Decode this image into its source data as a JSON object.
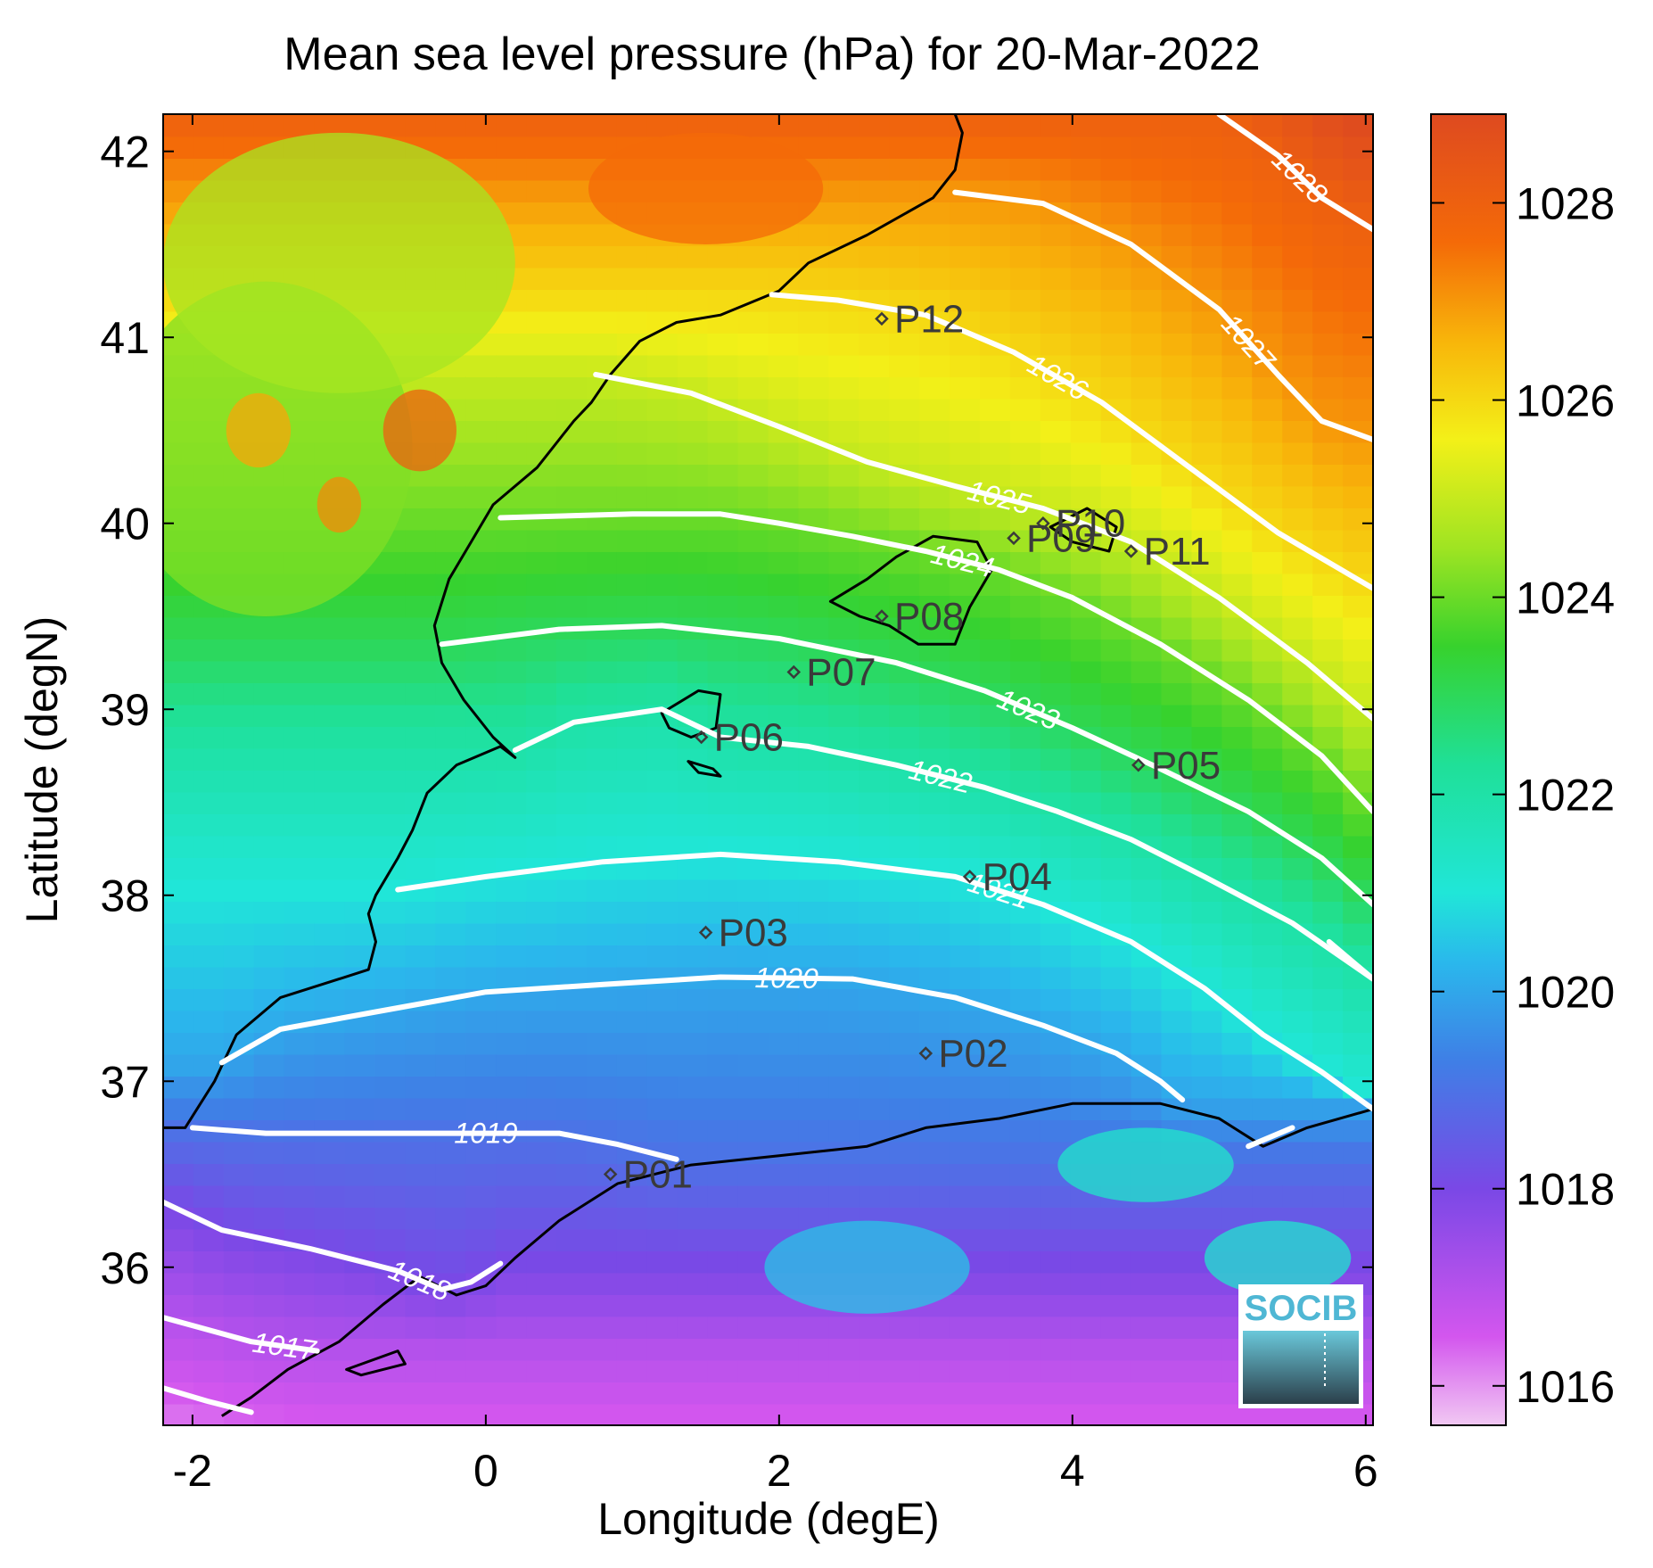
{
  "figure": {
    "title": "Mean sea level pressure (hPa) for 20-Mar-2022",
    "xlabel": "Longitude (degE)",
    "ylabel": "Latitude (degN)",
    "logo_text": "SOCIB"
  },
  "map": {
    "lon_range": [
      -2.2,
      6.05
    ],
    "lat_range": [
      35.15,
      42.2
    ],
    "x_ticks": [
      -2,
      0,
      2,
      4,
      6
    ],
    "x_tick_labels": [
      "-2",
      "0",
      "2",
      "4",
      "6"
    ],
    "y_ticks": [
      36,
      37,
      38,
      39,
      40,
      41,
      42
    ],
    "y_tick_labels": [
      "36",
      "37",
      "38",
      "39",
      "40",
      "41",
      "42"
    ],
    "colors": {
      "land_low": "#3fdd55",
      "coastline": "#000000",
      "contour": "#ffffff",
      "station_marker": "#3a3a3a"
    }
  },
  "colorbar": {
    "range": [
      1015.6,
      1028.9
    ],
    "ticks": [
      1016,
      1018,
      1020,
      1022,
      1024,
      1026,
      1028
    ],
    "tick_labels": [
      "1016",
      "1018",
      "1020",
      "1022",
      "1024",
      "1026",
      "1028"
    ],
    "stops": [
      {
        "value": 1015.6,
        "color": "#f1c8f3"
      },
      {
        "value": 1016.5,
        "color": "#d356ee"
      },
      {
        "value": 1018.0,
        "color": "#7a48e6"
      },
      {
        "value": 1019.3,
        "color": "#3f7fe6"
      },
      {
        "value": 1020.3,
        "color": "#2ab8ec"
      },
      {
        "value": 1021.0,
        "color": "#20e6d8"
      },
      {
        "value": 1022.3,
        "color": "#1fe098"
      },
      {
        "value": 1023.5,
        "color": "#37d22d"
      },
      {
        "value": 1024.5,
        "color": "#9fe422"
      },
      {
        "value": 1025.6,
        "color": "#f3f018"
      },
      {
        "value": 1026.6,
        "color": "#f8b50a"
      },
      {
        "value": 1027.6,
        "color": "#f46a08"
      },
      {
        "value": 1028.9,
        "color": "#de4a20"
      }
    ]
  },
  "stations": [
    {
      "id": "P01",
      "lon": 0.85,
      "lat": 36.5
    },
    {
      "id": "P02",
      "lon": 3.0,
      "lat": 37.15
    },
    {
      "id": "P03",
      "lon": 1.5,
      "lat": 37.8
    },
    {
      "id": "P04",
      "lon": 3.3,
      "lat": 38.1
    },
    {
      "id": "P05",
      "lon": 4.45,
      "lat": 38.7
    },
    {
      "id": "P06",
      "lon": 1.47,
      "lat": 38.85
    },
    {
      "id": "P07",
      "lon": 2.1,
      "lat": 39.2
    },
    {
      "id": "P08",
      "lon": 2.7,
      "lat": 39.5
    },
    {
      "id": "P09",
      "lon": 3.6,
      "lat": 39.92
    },
    {
      "id": "P10",
      "lon": 3.8,
      "lat": 40.0
    },
    {
      "id": "P11",
      "lon": 4.4,
      "lat": 39.85
    },
    {
      "id": "P12",
      "lon": 2.7,
      "lat": 41.1
    }
  ],
  "contours": [
    {
      "level": 1017,
      "label": "1017",
      "points": [
        [
          -2.2,
          35.73
        ],
        [
          -1.6,
          35.6
        ],
        [
          -1.15,
          35.55
        ]
      ]
    },
    {
      "level": 1017,
      "label": "",
      "points": [
        [
          -2.2,
          35.35
        ],
        [
          -1.9,
          35.28
        ],
        [
          -1.6,
          35.22
        ]
      ]
    },
    {
      "level": 1018,
      "label": "1018",
      "points": [
        [
          -2.2,
          36.35
        ],
        [
          -1.8,
          36.2
        ],
        [
          -1.2,
          36.1
        ],
        [
          -0.6,
          35.98
        ],
        [
          -0.3,
          35.88
        ],
        [
          -0.1,
          35.92
        ],
        [
          0.1,
          36.02
        ]
      ]
    },
    {
      "level": 1019,
      "label": "1019",
      "points": [
        [
          -2.0,
          36.75
        ],
        [
          -1.5,
          36.72
        ],
        [
          -0.5,
          36.72
        ],
        [
          0.5,
          36.72
        ],
        [
          0.9,
          36.66
        ],
        [
          1.3,
          36.58
        ]
      ]
    },
    {
      "level": 1020,
      "label": "1020",
      "points": [
        [
          -1.8,
          37.1
        ],
        [
          -1.4,
          37.28
        ],
        [
          -0.7,
          37.38
        ],
        [
          0,
          37.48
        ],
        [
          0.8,
          37.52
        ],
        [
          1.6,
          37.56
        ],
        [
          2.5,
          37.55
        ],
        [
          3.2,
          37.45
        ],
        [
          3.8,
          37.3
        ],
        [
          4.3,
          37.15
        ],
        [
          4.6,
          37.0
        ],
        [
          4.75,
          36.9
        ]
      ]
    },
    {
      "level": 1020,
      "label": "",
      "points": [
        [
          5.2,
          36.65
        ],
        [
          5.5,
          36.75
        ]
      ]
    },
    {
      "level": 1021,
      "label": "1021",
      "points": [
        [
          -0.6,
          38.03
        ],
        [
          0,
          38.1
        ],
        [
          0.8,
          38.18
        ],
        [
          1.6,
          38.22
        ],
        [
          2.4,
          38.18
        ],
        [
          3.2,
          38.1
        ],
        [
          3.8,
          37.95
        ],
        [
          4.4,
          37.75
        ],
        [
          4.9,
          37.5
        ],
        [
          5.3,
          37.25
        ],
        [
          5.7,
          37.05
        ],
        [
          6.05,
          36.85
        ]
      ]
    },
    {
      "level": 1021,
      "label": "",
      "points": [
        [
          5.75,
          37.75
        ],
        [
          6.05,
          37.55
        ]
      ]
    },
    {
      "level": 1022,
      "label": "1022",
      "points": [
        [
          0.2,
          38.78
        ],
        [
          0.6,
          38.93
        ],
        [
          1.2,
          39.0
        ],
        [
          1.6,
          38.85
        ],
        [
          2.2,
          38.8
        ],
        [
          2.8,
          38.7
        ],
        [
          3.4,
          38.58
        ],
        [
          3.9,
          38.45
        ],
        [
          4.4,
          38.3
        ],
        [
          4.9,
          38.1
        ],
        [
          5.5,
          37.85
        ],
        [
          6.05,
          37.55
        ]
      ]
    },
    {
      "level": 1023,
      "label": "1023",
      "points": [
        [
          -0.3,
          39.35
        ],
        [
          0.5,
          39.43
        ],
        [
          1.2,
          39.45
        ],
        [
          2.0,
          39.38
        ],
        [
          2.8,
          39.25
        ],
        [
          3.4,
          39.1
        ],
        [
          4.0,
          38.9
        ],
        [
          4.6,
          38.68
        ],
        [
          5.2,
          38.45
        ],
        [
          5.7,
          38.2
        ],
        [
          6.05,
          37.95
        ]
      ]
    },
    {
      "level": 1024,
      "label": "1024",
      "points": [
        [
          0.1,
          40.03
        ],
        [
          1.0,
          40.05
        ],
        [
          1.6,
          40.05
        ],
        [
          2.0,
          40.0
        ],
        [
          2.5,
          39.93
        ],
        [
          3.0,
          39.85
        ],
        [
          3.5,
          39.75
        ],
        [
          4.0,
          39.6
        ],
        [
          4.6,
          39.35
        ],
        [
          5.2,
          39.05
        ],
        [
          5.7,
          38.75
        ],
        [
          6.05,
          38.45
        ]
      ]
    },
    {
      "level": 1025,
      "label": "1025",
      "points": [
        [
          0.75,
          40.8
        ],
        [
          1.4,
          40.7
        ],
        [
          2.0,
          40.52
        ],
        [
          2.6,
          40.33
        ],
        [
          3.2,
          40.2
        ],
        [
          3.8,
          40.08
        ],
        [
          4.4,
          39.9
        ],
        [
          5.0,
          39.6
        ],
        [
          5.6,
          39.25
        ],
        [
          6.05,
          38.95
        ]
      ]
    },
    {
      "level": 1026,
      "label": "1026",
      "points": [
        [
          1.95,
          41.23
        ],
        [
          2.4,
          41.2
        ],
        [
          3.0,
          41.12
        ],
        [
          3.6,
          40.92
        ],
        [
          4.2,
          40.65
        ],
        [
          4.8,
          40.3
        ],
        [
          5.4,
          39.95
        ],
        [
          6.05,
          39.65
        ]
      ]
    },
    {
      "level": 1027,
      "label": "1027",
      "points": [
        [
          3.2,
          41.78
        ],
        [
          3.8,
          41.72
        ],
        [
          4.4,
          41.5
        ],
        [
          5.0,
          41.15
        ],
        [
          5.4,
          40.8
        ],
        [
          5.7,
          40.55
        ],
        [
          6.05,
          40.45
        ]
      ]
    },
    {
      "level": 1028,
      "label": "1028",
      "points": [
        [
          5.0,
          42.2
        ],
        [
          5.4,
          41.98
        ],
        [
          5.7,
          41.75
        ],
        [
          6.05,
          41.58
        ]
      ]
    }
  ],
  "coastlines": [
    {
      "name": "iberian-coast",
      "points": [
        [
          -2.2,
          36.75
        ],
        [
          -2.05,
          36.75
        ],
        [
          -1.85,
          37.0
        ],
        [
          -1.7,
          37.25
        ],
        [
          -1.4,
          37.45
        ],
        [
          -1.0,
          37.55
        ],
        [
          -0.8,
          37.6
        ],
        [
          -0.75,
          37.75
        ],
        [
          -0.8,
          37.9
        ],
        [
          -0.75,
          38.0
        ],
        [
          -0.6,
          38.2
        ],
        [
          -0.5,
          38.35
        ],
        [
          -0.4,
          38.55
        ],
        [
          -0.2,
          38.7
        ],
        [
          0.1,
          38.8
        ],
        [
          0.2,
          38.74
        ],
        [
          0.05,
          38.85
        ],
        [
          -0.15,
          39.05
        ],
        [
          -0.3,
          39.25
        ],
        [
          -0.35,
          39.45
        ],
        [
          -0.25,
          39.7
        ],
        [
          -0.1,
          39.9
        ],
        [
          0.05,
          40.1
        ],
        [
          0.35,
          40.3
        ],
        [
          0.6,
          40.55
        ],
        [
          0.72,
          40.65
        ],
        [
          0.85,
          40.8
        ],
        [
          1.05,
          40.98
        ],
        [
          1.3,
          41.08
        ],
        [
          1.6,
          41.12
        ],
        [
          2.0,
          41.25
        ],
        [
          2.2,
          41.4
        ],
        [
          2.6,
          41.55
        ],
        [
          3.05,
          41.75
        ],
        [
          3.2,
          41.9
        ],
        [
          3.25,
          42.1
        ],
        [
          3.2,
          42.2
        ]
      ]
    },
    {
      "name": "african-coast",
      "points": [
        [
          -1.8,
          35.2
        ],
        [
          -1.6,
          35.3
        ],
        [
          -1.35,
          35.45
        ],
        [
          -1.0,
          35.6
        ],
        [
          -0.7,
          35.8
        ],
        [
          -0.45,
          35.95
        ],
        [
          -0.2,
          35.85
        ],
        [
          0.0,
          35.9
        ],
        [
          0.2,
          36.05
        ],
        [
          0.5,
          36.25
        ],
        [
          0.9,
          36.45
        ],
        [
          1.4,
          36.55
        ],
        [
          2.0,
          36.6
        ],
        [
          2.6,
          36.65
        ],
        [
          3.0,
          36.75
        ],
        [
          3.5,
          36.8
        ],
        [
          4.0,
          36.88
        ],
        [
          4.6,
          36.88
        ],
        [
          5.0,
          36.8
        ],
        [
          5.3,
          36.65
        ],
        [
          5.6,
          36.75
        ],
        [
          6.05,
          36.85
        ]
      ]
    },
    {
      "name": "mallorca",
      "closed": true,
      "points": [
        [
          2.35,
          39.58
        ],
        [
          2.6,
          39.7
        ],
        [
          2.8,
          39.82
        ],
        [
          3.05,
          39.93
        ],
        [
          3.35,
          39.9
        ],
        [
          3.45,
          39.75
        ],
        [
          3.3,
          39.55
        ],
        [
          3.2,
          39.35
        ],
        [
          2.95,
          39.35
        ],
        [
          2.75,
          39.45
        ],
        [
          2.55,
          39.5
        ]
      ]
    },
    {
      "name": "menorca",
      "closed": true,
      "points": [
        [
          3.85,
          39.98
        ],
        [
          4.1,
          40.08
        ],
        [
          4.3,
          39.98
        ],
        [
          4.25,
          39.85
        ],
        [
          4.0,
          39.9
        ]
      ]
    },
    {
      "name": "ibiza",
      "closed": true,
      "points": [
        [
          1.2,
          38.98
        ],
        [
          1.45,
          39.1
        ],
        [
          1.6,
          39.08
        ],
        [
          1.57,
          38.9
        ],
        [
          1.4,
          38.85
        ],
        [
          1.25,
          38.9
        ]
      ]
    },
    {
      "name": "formentera",
      "closed": true,
      "points": [
        [
          1.38,
          38.72
        ],
        [
          1.55,
          38.68
        ],
        [
          1.6,
          38.64
        ],
        [
          1.45,
          38.66
        ]
      ]
    },
    {
      "name": "alboran",
      "closed": true,
      "points": [
        [
          -0.95,
          35.45
        ],
        [
          -0.6,
          35.55
        ],
        [
          -0.55,
          35.48
        ],
        [
          -0.85,
          35.42
        ]
      ]
    }
  ],
  "highlands": [
    {
      "name": "central-plateau",
      "lon": -1.5,
      "lat": 40.4,
      "rx": 1.0,
      "ry": 0.9,
      "value": 1024.2
    },
    {
      "name": "north-highland",
      "lon": -1.0,
      "lat": 41.4,
      "rx": 1.2,
      "ry": 0.7,
      "value": 1024.6
    },
    {
      "name": "peak-1",
      "lon": -0.45,
      "lat": 40.5,
      "rx": 0.25,
      "ry": 0.22,
      "value": 1028.0
    },
    {
      "name": "peak-2",
      "lon": -1.55,
      "lat": 40.5,
      "rx": 0.22,
      "ry": 0.2,
      "value": 1026.8
    },
    {
      "name": "peak-3",
      "lon": -1.0,
      "lat": 40.1,
      "rx": 0.15,
      "ry": 0.15,
      "value": 1027.2
    },
    {
      "name": "sierra-north",
      "lon": 1.5,
      "lat": 41.8,
      "rx": 0.8,
      "ry": 0.3,
      "value": 1027.6
    },
    {
      "name": "atlas-1",
      "lon": 4.5,
      "lat": 36.55,
      "rx": 0.6,
      "ry": 0.2,
      "value": 1021.3
    },
    {
      "name": "atlas-2",
      "lon": 5.4,
      "lat": 36.05,
      "rx": 0.5,
      "ry": 0.2,
      "value": 1021.2
    },
    {
      "name": "atlas-3",
      "lon": 2.6,
      "lat": 36.0,
      "rx": 0.7,
      "ry": 0.25,
      "value": 1020.5
    }
  ]
}
